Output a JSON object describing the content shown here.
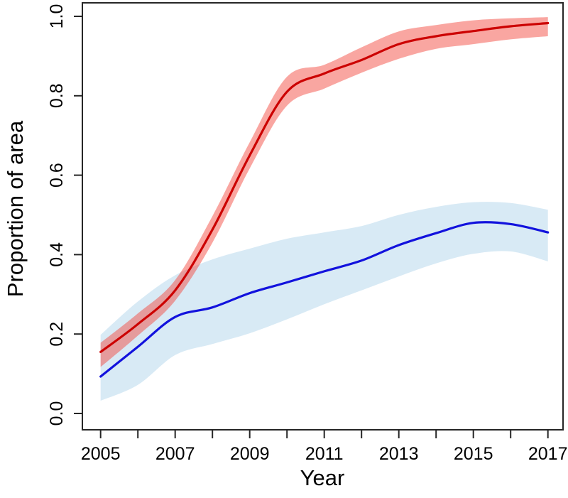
{
  "figure": {
    "background": "#ffffff",
    "axis_color": "#262626",
    "text_color": "#000000"
  },
  "chart_data": {
    "type": "line",
    "title": "",
    "xlabel": "Year",
    "ylabel": "Proportion of area",
    "xlim": [
      2005,
      2017
    ],
    "ylim": [
      0.0,
      1.0
    ],
    "grid": false,
    "legend": "none",
    "x_ticks": [
      2005,
      2006,
      2007,
      2008,
      2009,
      2010,
      2011,
      2012,
      2013,
      2014,
      2015,
      2016,
      2017
    ],
    "x_labeled_ticks": [
      2005,
      2007,
      2009,
      2011,
      2013,
      2015,
      2017
    ],
    "x_tick_labels": [
      "2005",
      "2007",
      "2009",
      "2011",
      "2013",
      "2015",
      "2017"
    ],
    "y_ticks": [
      0.0,
      0.2,
      0.4,
      0.6,
      0.8,
      1.0
    ],
    "y_tick_labels": [
      "0.0",
      "0.2",
      "0.4",
      "0.6",
      "0.8",
      "1.0"
    ],
    "x": [
      2005,
      2006,
      2007,
      2008,
      2009,
      2010,
      2011,
      2012,
      2013,
      2014,
      2015,
      2016,
      2017
    ],
    "series": [
      {
        "name": "blue-series",
        "line_color": "#1212dd",
        "band_color": "#d8eaf5",
        "band_opacity": 1.0,
        "values": [
          0.093,
          0.168,
          0.243,
          0.267,
          0.303,
          0.33,
          0.358,
          0.385,
          0.424,
          0.454,
          0.48,
          0.477,
          0.456
        ],
        "upper": [
          0.198,
          0.282,
          0.348,
          0.388,
          0.415,
          0.44,
          0.456,
          0.472,
          0.5,
          0.52,
          0.532,
          0.53,
          0.513
        ],
        "lower": [
          0.032,
          0.072,
          0.147,
          0.175,
          0.202,
          0.237,
          0.275,
          0.31,
          0.345,
          0.378,
          0.402,
          0.408,
          0.383
        ]
      },
      {
        "name": "red-series",
        "line_color": "#cc0000",
        "band_color": "rgba(242,70,58,0.48)",
        "band_opacity": 1.0,
        "values": [
          0.155,
          0.225,
          0.31,
          0.463,
          0.65,
          0.81,
          0.856,
          0.89,
          0.93,
          0.95,
          0.963,
          0.975,
          0.983
        ],
        "upper": [
          0.178,
          0.252,
          0.336,
          0.497,
          0.683,
          0.848,
          0.878,
          0.922,
          0.962,
          0.978,
          0.99,
          0.995,
          0.998
        ],
        "lower": [
          0.117,
          0.196,
          0.284,
          0.43,
          0.617,
          0.775,
          0.818,
          0.858,
          0.893,
          0.918,
          0.93,
          0.942,
          0.95
        ]
      }
    ]
  }
}
